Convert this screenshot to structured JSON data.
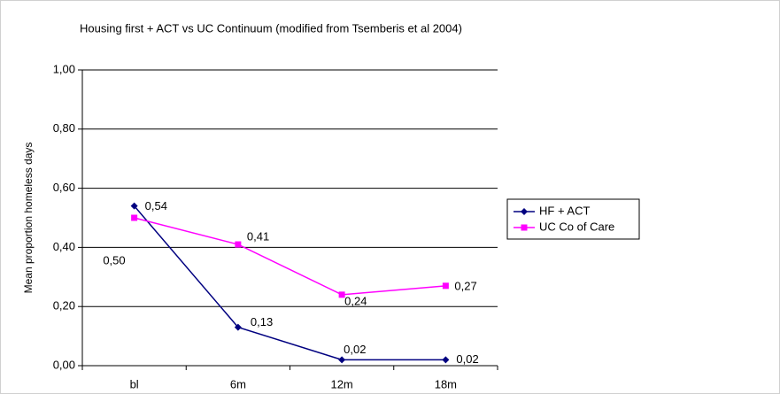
{
  "chart_data": {
    "type": "line",
    "title": "Housing first + ACT vs UC Continuum (modified from Tsemberis et al 2004)",
    "y_label": "Mean proportion homeless days",
    "categories": [
      "bl",
      "6m",
      "12m",
      "18m"
    ],
    "series": [
      {
        "name": "HF + ACT",
        "color": "#000080",
        "marker": "diamond",
        "values": [
          0.54,
          0.13,
          0.02,
          0.02
        ],
        "value_labels": [
          "0,54",
          "0,13",
          "0,02",
          "0,02"
        ]
      },
      {
        "name": "UC Co of Care",
        "color": "#ff00ff",
        "marker": "square",
        "values": [
          0.5,
          0.41,
          0.24,
          0.27
        ],
        "value_labels": [
          "0,50",
          "0,41",
          "0,24",
          "0,27"
        ]
      }
    ],
    "ylim": [
      0,
      1
    ],
    "yticks": [
      {
        "value": 0,
        "label": "0,00"
      },
      {
        "value": 0.2,
        "label": "0,20"
      },
      {
        "value": 0.4,
        "label": "0,40"
      },
      {
        "value": 0.6,
        "label": "0,60"
      },
      {
        "value": 0.8,
        "label": "0,80"
      },
      {
        "value": 1,
        "label": "1,00"
      }
    ],
    "grid": true,
    "legend": "right"
  }
}
